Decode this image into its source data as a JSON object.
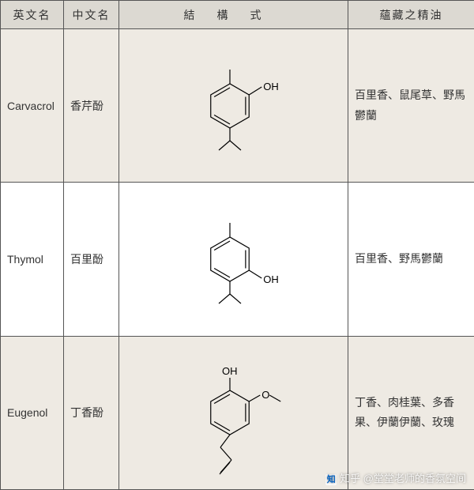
{
  "header": {
    "col_en": "英文名",
    "col_cn": "中文名",
    "col_struct": "結構式",
    "col_oil": "蘊藏之精油"
  },
  "rows": [
    {
      "en": "Carvacrol",
      "cn": "香芹酚",
      "struct_type": "carvacrol",
      "oils": "百里香、鼠尾草、野馬鬱蘭",
      "colors": {
        "line": "#000000",
        "text": "#000000"
      }
    },
    {
      "en": "Thymol",
      "cn": "百里酚",
      "struct_type": "thymol",
      "oils": "百里香、野馬鬱蘭",
      "colors": {
        "line": "#000000",
        "text": "#000000"
      }
    },
    {
      "en": "Eugenol",
      "cn": "丁香酚",
      "struct_type": "eugenol",
      "oils": "丁香、肉桂葉、多香果、伊蘭伊蘭、玫瑰",
      "colors": {
        "line": "#000000",
        "text": "#000000"
      }
    }
  ],
  "watermark": {
    "logo": "知",
    "text": "知乎 @堂堂老师的香氛空间"
  },
  "style": {
    "header_bg": "#dcd9d2",
    "row_alt_bg": "#eeeae3",
    "row_bg": "#ffffff",
    "border_color": "#555555",
    "svg": {
      "stroke_width": 1.2,
      "font_size": 13
    }
  }
}
